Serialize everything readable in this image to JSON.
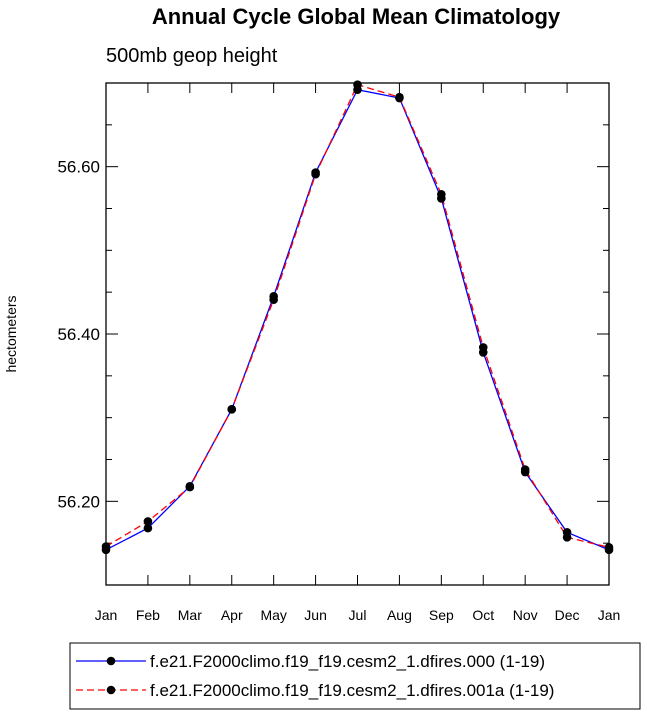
{
  "chart_data": {
    "type": "line",
    "title": "Annual Cycle Global Mean Climatology",
    "subtitle": "500mb geop height",
    "ylabel": "hectometers",
    "xlabel": "",
    "categories": [
      "Jan",
      "Feb",
      "Mar",
      "Apr",
      "May",
      "Jun",
      "Jul",
      "Aug",
      "Sep",
      "Oct",
      "Nov",
      "Dec",
      "Jan"
    ],
    "ylim": [
      56.1,
      56.7
    ],
    "yticks": [
      56.2,
      56.4,
      56.6
    ],
    "ytick_labels": [
      "56.20",
      "56.40",
      "56.60"
    ],
    "series": [
      {
        "name": "f.e21.F2000climo.f19_f19.cesm2_1.dfires.000 (1-19)",
        "color": "#0000ff",
        "dash": "solid",
        "values": [
          56.142,
          56.168,
          56.218,
          56.31,
          56.445,
          56.593,
          56.692,
          56.682,
          56.562,
          56.378,
          56.235,
          56.163,
          56.142
        ]
      },
      {
        "name": "f.e21.F2000climo.f19_f19.cesm2_1.dfires.001a (1-19)",
        "color": "#ff0000",
        "dash": "dashed",
        "values": [
          56.146,
          56.176,
          56.217,
          56.31,
          56.441,
          56.591,
          56.698,
          56.683,
          56.567,
          56.384,
          56.238,
          56.157,
          56.145
        ]
      }
    ],
    "legend_position": "bottom"
  }
}
